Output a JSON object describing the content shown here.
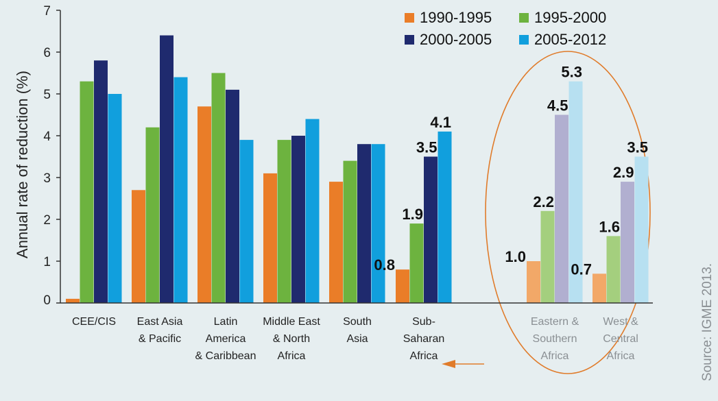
{
  "chart_data": {
    "type": "bar",
    "ylabel": "Annual rate of reduction (%)",
    "ylim": [
      0,
      7
    ],
    "yticks": [
      "0",
      "1",
      "2",
      "3",
      "4",
      "5",
      "6",
      "7"
    ],
    "categories": [
      [
        "CEE/CIS"
      ],
      [
        "East Asia",
        "& Pacific"
      ],
      [
        "Latin",
        "America",
        "& Caribbean"
      ],
      [
        "Middle East",
        "& North",
        "Africa"
      ],
      [
        "South",
        "Asia"
      ],
      [
        "Sub-",
        "Saharan",
        "Africa"
      ],
      [
        "Eastern &",
        "Southern",
        "Africa"
      ],
      [
        "West &",
        "Central",
        "Africa"
      ]
    ],
    "highlighted_categories": [
      6,
      7
    ],
    "series": [
      {
        "name": "1990-1995",
        "color": "#ea7d28",
        "light_color": "#f2a868",
        "values": [
          0.1,
          2.7,
          4.7,
          3.1,
          2.9,
          0.8,
          1.0,
          0.7
        ],
        "labels": [
          "",
          "",
          "",
          "",
          "",
          "0.8",
          "1.0",
          "0.7"
        ]
      },
      {
        "name": "1995-2000",
        "color": "#6db33f",
        "light_color": "#a4cf7e",
        "values": [
          5.3,
          4.2,
          5.5,
          3.9,
          3.4,
          1.9,
          2.2,
          1.6
        ],
        "labels": [
          "",
          "",
          "",
          "",
          "",
          "1.9",
          "2.2",
          "1.6"
        ]
      },
      {
        "name": "2000-2005",
        "color": "#1f2a6e",
        "light_color": "#b1afd0",
        "values": [
          5.8,
          6.4,
          5.1,
          4.0,
          3.8,
          3.5,
          4.5,
          2.9
        ],
        "labels": [
          "",
          "",
          "",
          "",
          "",
          "3.5",
          "4.5",
          "2.9"
        ]
      },
      {
        "name": "2005-2012",
        "color": "#119fdd",
        "light_color": "#b7e0f1",
        "values": [
          5.0,
          5.4,
          3.9,
          4.4,
          3.8,
          4.1,
          5.3,
          3.5
        ],
        "labels": [
          "",
          "",
          "",
          "",
          "",
          "4.1",
          "5.3",
          "3.5"
        ]
      }
    ],
    "annotation_color": "#e07b2a",
    "legend_position": "top-right",
    "grid": false,
    "source": "Source: IGME 2013."
  }
}
